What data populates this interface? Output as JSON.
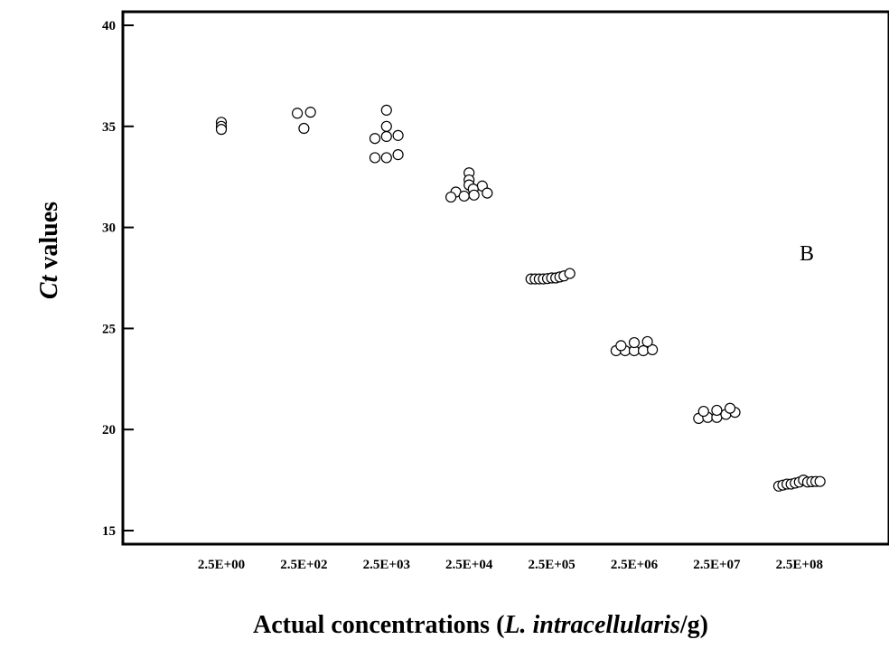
{
  "chart_data": {
    "type": "scatter",
    "title": "",
    "annotation": "B",
    "xlabel": {
      "prefix": "Actual concentrations (",
      "italic": "L. intracellularis",
      "suffix": "/g)"
    },
    "ylabel": {
      "italic": "Ct",
      "rest": " values"
    },
    "ylim": [
      15,
      40
    ],
    "yticks": [
      15,
      20,
      25,
      30,
      35,
      40
    ],
    "grid": false,
    "legend": "none",
    "categories": [
      "2.5E+00",
      "2.5E+02",
      "2.5E+03",
      "2.5E+04",
      "2.5E+05",
      "2.5E+06",
      "2.5E+07",
      "2.5E+08"
    ],
    "groups": [
      {
        "category": "2.5E+00",
        "points": [
          [
            0,
            35.2
          ],
          [
            0,
            35.0
          ],
          [
            0,
            34.85
          ]
        ]
      },
      {
        "category": "2.5E+02",
        "points": [
          [
            -0.08,
            35.65
          ],
          [
            0.08,
            35.7
          ],
          [
            0,
            34.9
          ]
        ]
      },
      {
        "category": "2.5E+03",
        "points": [
          [
            0,
            35.8
          ],
          [
            0,
            35.0
          ],
          [
            -0.14,
            34.4
          ],
          [
            0,
            34.5
          ],
          [
            0.14,
            34.55
          ],
          [
            -0.14,
            33.45
          ],
          [
            0,
            33.45
          ],
          [
            0.14,
            33.6
          ]
        ]
      },
      {
        "category": "2.5E+04",
        "points": [
          [
            0,
            32.7
          ],
          [
            0,
            32.35
          ],
          [
            0,
            32.1
          ],
          [
            0.16,
            32.05
          ],
          [
            -0.16,
            31.75
          ],
          [
            0.05,
            31.9
          ],
          [
            -0.22,
            31.5
          ],
          [
            -0.06,
            31.55
          ],
          [
            0.06,
            31.6
          ],
          [
            0.22,
            31.7
          ]
        ]
      },
      {
        "category": "2.5E+05",
        "points": [
          [
            -0.25,
            27.45
          ],
          [
            -0.2,
            27.45
          ],
          [
            -0.15,
            27.45
          ],
          [
            -0.1,
            27.45
          ],
          [
            -0.05,
            27.47
          ],
          [
            0.0,
            27.5
          ],
          [
            0.05,
            27.5
          ],
          [
            0.1,
            27.55
          ],
          [
            0.15,
            27.6
          ],
          [
            0.22,
            27.72
          ]
        ]
      },
      {
        "category": "2.5E+06",
        "points": [
          [
            -0.22,
            23.9
          ],
          [
            -0.11,
            23.9
          ],
          [
            0,
            23.9
          ],
          [
            0.11,
            23.9
          ],
          [
            0.22,
            23.95
          ],
          [
            -0.16,
            24.15
          ],
          [
            0,
            24.3
          ],
          [
            0.16,
            24.35
          ]
        ]
      },
      {
        "category": "2.5E+07",
        "points": [
          [
            -0.22,
            20.55
          ],
          [
            -0.11,
            20.6
          ],
          [
            0,
            20.6
          ],
          [
            0.11,
            20.75
          ],
          [
            0.22,
            20.85
          ],
          [
            -0.16,
            20.9
          ],
          [
            0,
            20.95
          ],
          [
            0.16,
            21.05
          ]
        ]
      },
      {
        "category": "2.5E+08",
        "points": [
          [
            -0.25,
            17.2
          ],
          [
            -0.2,
            17.25
          ],
          [
            -0.15,
            17.3
          ],
          [
            -0.1,
            17.3
          ],
          [
            -0.05,
            17.35
          ],
          [
            0.0,
            17.4
          ],
          [
            0.05,
            17.5
          ],
          [
            0.1,
            17.4
          ],
          [
            0.15,
            17.42
          ],
          [
            0.2,
            17.43
          ],
          [
            0.25,
            17.43
          ]
        ]
      }
    ]
  }
}
